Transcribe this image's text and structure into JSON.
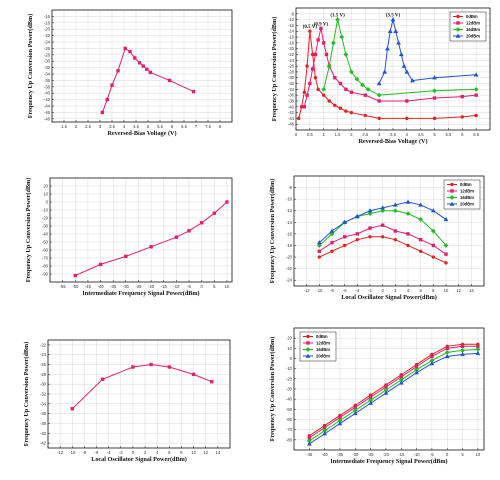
{
  "chart_data": [
    {
      "type": "line",
      "xlabel": "Reversed-Bias Voltage (V)",
      "ylabel": "Frequency Up Conversion Power(dBm)",
      "xlim": [
        1.0,
        8.5
      ],
      "ylim": [
        -49,
        -14
      ],
      "xticks": [
        1.5,
        2.0,
        2.5,
        3.0,
        3.5,
        4.0,
        4.5,
        5.0,
        5.5,
        6.0,
        6.5,
        7.0,
        7.5,
        8.0
      ],
      "yticks": [
        -16,
        -18,
        -20,
        -22,
        -24,
        -26,
        -28,
        -30,
        -32,
        -34,
        -36,
        -38,
        -40,
        -42,
        -44,
        -46,
        -48
      ],
      "grid": true,
      "series": [
        {
          "color": "#e0206f",
          "marker": "square",
          "x": [
            3.1,
            3.3,
            3.5,
            3.75,
            4.05,
            4.25,
            4.45,
            4.65,
            4.8,
            4.95,
            5.1,
            5.9,
            6.9
          ],
          "y": [
            -46,
            -42,
            -37.5,
            -33,
            -26,
            -27,
            -29,
            -30.5,
            -31.5,
            -32.5,
            -33.5,
            -36,
            -39.5
          ]
        }
      ]
    },
    {
      "type": "line",
      "xlabel": "Reversed-Bias Voltage (V)",
      "ylabel": "Frequency Up Conversion Power(dBm)",
      "xlim": [
        0,
        7
      ],
      "ylim": [
        -48,
        -6
      ],
      "xticks": [
        0.0,
        0.5,
        1.0,
        1.5,
        2.0,
        2.5,
        3.0,
        3.5,
        4.0,
        4.5,
        5.0,
        5.5,
        6.0,
        6.5
      ],
      "yticks": [
        -8,
        -10,
        -12,
        -14,
        -16,
        -18,
        -20,
        -22,
        -24,
        -26,
        -28,
        -30,
        -32,
        -34,
        -36,
        -38,
        -40,
        -42,
        -44,
        -46
      ],
      "grid": true,
      "legend": "top-right",
      "annotations": [
        "(0.5 V)",
        "(0.9 V)",
        "(1.5 V)",
        "(3.5 V)"
      ],
      "series": [
        {
          "name": "0dBm",
          "color": "#e02424",
          "marker": "circle",
          "x": [
            0.1,
            0.2,
            0.3,
            0.4,
            0.5,
            0.6,
            0.7,
            0.8,
            1.0,
            1.2,
            1.4,
            1.6,
            1.8,
            2.0,
            2.5,
            3.0,
            4.0,
            5.0,
            6.0,
            6.5
          ],
          "y": [
            -44,
            -40,
            -35,
            -26,
            -14,
            -22,
            -30,
            -34,
            -36,
            -38,
            -39.5,
            -40.5,
            -41.5,
            -42,
            -43,
            -44,
            -44,
            -44,
            -43.5,
            -43
          ]
        },
        {
          "name": "12dBm",
          "color": "#e0206f",
          "marker": "square",
          "x": [
            0.3,
            0.4,
            0.5,
            0.6,
            0.7,
            0.8,
            0.9,
            1.0,
            1.1,
            1.2,
            1.4,
            1.6,
            1.8,
            2.0,
            2.5,
            3.0,
            4.0,
            5.0,
            6.0,
            6.5
          ],
          "y": [
            -40,
            -36,
            -32,
            -27,
            -22,
            -17,
            -13,
            -18,
            -22,
            -26,
            -30,
            -32,
            -34,
            -35,
            -36,
            -38,
            -38,
            -37,
            -36.5,
            -36
          ]
        },
        {
          "name": "16dBm",
          "color": "#22bb22",
          "marker": "diamond",
          "x": [
            1.0,
            1.2,
            1.35,
            1.5,
            1.65,
            1.8,
            2.0,
            2.2,
            2.4,
            2.6,
            3.0,
            5.0,
            6.5
          ],
          "y": [
            -34,
            -26,
            -18,
            -10,
            -16,
            -22,
            -28,
            -30.5,
            -32.5,
            -34,
            -36,
            -34.5,
            -34
          ]
        },
        {
          "name": "20dBm",
          "color": "#2255cc",
          "marker": "triangle",
          "x": [
            3.0,
            3.2,
            3.3,
            3.4,
            3.5,
            3.6,
            3.7,
            3.8,
            3.9,
            4.0,
            4.2,
            5.0,
            6.5
          ],
          "y": [
            -32,
            -28,
            -20,
            -14,
            -10,
            -14,
            -18,
            -22,
            -26,
            -28,
            -31,
            -30,
            -29
          ]
        }
      ]
    },
    {
      "type": "line",
      "xlabel": "Intermediate Frequency Signal Power(dBm)",
      "ylabel": "Frequency Up Conversion Power(dBm)",
      "xlim": [
        -60,
        12
      ],
      "ylim": [
        -100,
        30
      ],
      "xticks": [
        -55,
        -50,
        -45,
        -40,
        -35,
        -30,
        -25,
        -20,
        -15,
        -10,
        -5,
        0,
        5,
        10
      ],
      "yticks": [
        20,
        10,
        0,
        -10,
        -20,
        -30,
        -40,
        -50,
        -60,
        -70,
        -80,
        -90
      ],
      "grid": true,
      "series": [
        {
          "color": "#e0206f",
          "marker": "square",
          "x": [
            -50,
            -40,
            -30,
            -20,
            -10,
            -5,
            0,
            5,
            10
          ],
          "y": [
            -92,
            -78,
            -68,
            -56,
            -44,
            -36,
            -26,
            -14,
            0
          ]
        }
      ]
    },
    {
      "type": "line",
      "xlabel": "Local Oscillator Signal Power(dBm)",
      "ylabel": "Frequency Up Conversion Power(dBm)",
      "xlim": [
        -14,
        16
      ],
      "ylim": [
        -25,
        -6
      ],
      "xticks": [
        -12,
        -10,
        -8,
        -6,
        -4,
        -2,
        0,
        2,
        4,
        6,
        8,
        10,
        12,
        14
      ],
      "yticks": [
        -8,
        -10,
        -12,
        -14,
        -16,
        -18,
        -20,
        -22,
        -24
      ],
      "grid": true,
      "legend": "top-right",
      "series": [
        {
          "name": "0dBm",
          "color": "#e02424",
          "marker": "circle",
          "x": [
            -10,
            -8,
            -6,
            -4,
            -2,
            0,
            2,
            4,
            6,
            8,
            10
          ],
          "y": [
            -20,
            -19,
            -18,
            -17,
            -16.5,
            -16.5,
            -17,
            -18,
            -19,
            -20,
            -21
          ]
        },
        {
          "name": "12dBm",
          "color": "#e0206f",
          "marker": "square",
          "x": [
            -10,
            -8,
            -6,
            -4,
            -2,
            0,
            2,
            4,
            6,
            8,
            10
          ],
          "y": [
            -19,
            -17.5,
            -16.5,
            -16,
            -15,
            -14.5,
            -15.5,
            -16,
            -17,
            -18,
            -19.5
          ]
        },
        {
          "name": "16dBm",
          "color": "#22bb22",
          "marker": "diamond",
          "x": [
            -10,
            -8,
            -6,
            -4,
            -2,
            0,
            2,
            4,
            6,
            8,
            10
          ],
          "y": [
            -18,
            -16,
            -14,
            -13,
            -12.5,
            -12,
            -12,
            -12.5,
            -13.5,
            -15.5,
            -18
          ]
        },
        {
          "name": "20dBm",
          "color": "#2255cc",
          "marker": "triangle",
          "x": [
            -10,
            -8,
            -6,
            -4,
            -2,
            0,
            2,
            4,
            6,
            8,
            10
          ],
          "y": [
            -17.5,
            -15.5,
            -14,
            -13,
            -12,
            -11.5,
            -11,
            -10.5,
            -11,
            -12,
            -13.5
          ]
        }
      ]
    },
    {
      "type": "line",
      "xlabel": "Local Oscillator Signal Power(dBm)",
      "ylabel": "Frequency Up Conversion Power(dBm)",
      "xlim": [
        -14,
        16
      ],
      "ylim": [
        -43,
        -21
      ],
      "xticks": [
        -12,
        -10,
        -8,
        -6,
        -4,
        -2,
        0,
        2,
        4,
        6,
        8,
        10,
        12,
        14
      ],
      "yticks": [
        -22,
        -24,
        -26,
        -28,
        -30,
        -32,
        -34,
        -36,
        -38,
        -40,
        -42
      ],
      "grid": true,
      "series": [
        {
          "color": "#e0206f",
          "marker": "square",
          "x": [
            -10,
            -5,
            0,
            3,
            6,
            10,
            13
          ],
          "y": [
            -35,
            -29,
            -26.5,
            -26,
            -26.5,
            -28,
            -29.5
          ]
        }
      ]
    },
    {
      "type": "line",
      "xlabel": "Intermediate Frequency Signal Power(dBm)",
      "ylabel": "Frequency Up Conversion Power(dBm)",
      "xlim": [
        -50,
        12
      ],
      "ylim": [
        -90,
        30
      ],
      "xticks": [
        -45,
        -40,
        -35,
        -30,
        -25,
        -20,
        -15,
        -10,
        -5,
        0,
        5,
        10
      ],
      "yticks": [
        20,
        10,
        0,
        -10,
        -20,
        -30,
        -40,
        -50,
        -60,
        -70,
        -80
      ],
      "grid": true,
      "legend": "top-left",
      "series": [
        {
          "name": "0dBm",
          "color": "#e02424",
          "marker": "circle",
          "x": [
            -45,
            -40,
            -35,
            -30,
            -25,
            -20,
            -15,
            -10,
            -5,
            0,
            5,
            10
          ],
          "y": [
            -76,
            -66,
            -56,
            -46,
            -36,
            -26,
            -16,
            -6,
            4,
            12,
            14,
            14
          ]
        },
        {
          "name": "12dBm",
          "color": "#e0206f",
          "marker": "square",
          "x": [
            -45,
            -40,
            -35,
            -30,
            -25,
            -20,
            -15,
            -10,
            -5,
            0,
            5,
            10
          ],
          "y": [
            -78,
            -68,
            -58,
            -48,
            -38,
            -28,
            -18,
            -8,
            2,
            10,
            12,
            12
          ]
        },
        {
          "name": "16dBm",
          "color": "#22bb22",
          "marker": "diamond",
          "x": [
            -45,
            -40,
            -35,
            -30,
            -25,
            -20,
            -15,
            -10,
            -5,
            0,
            5,
            10
          ],
          "y": [
            -81,
            -71,
            -61,
            -51,
            -41,
            -31,
            -21,
            -11,
            -2,
            6,
            8,
            9
          ]
        },
        {
          "name": "20dBm",
          "color": "#2255cc",
          "marker": "triangle",
          "x": [
            -45,
            -40,
            -35,
            -30,
            -25,
            -20,
            -15,
            -10,
            -5,
            0,
            5,
            10
          ],
          "y": [
            -84,
            -74,
            -64,
            -54,
            -44,
            -34,
            -24,
            -14,
            -5,
            2,
            4,
            5
          ]
        }
      ]
    }
  ]
}
